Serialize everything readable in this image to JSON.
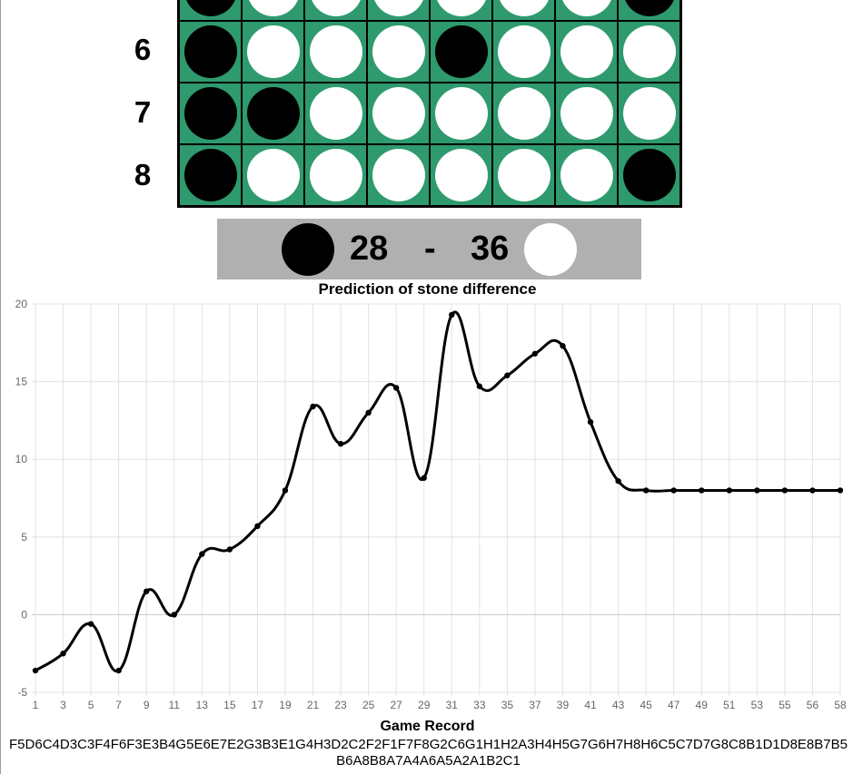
{
  "board": {
    "rows": [
      {
        "label": "",
        "cells": [
          "B",
          "W",
          "W",
          "W",
          "W",
          "W",
          "W",
          "B"
        ]
      },
      {
        "label": "6",
        "cells": [
          "B",
          "W",
          "W",
          "W",
          "B",
          "W",
          "W",
          "W"
        ]
      },
      {
        "label": "7",
        "cells": [
          "B",
          "B",
          "W",
          "W",
          "W",
          "W",
          "W",
          "W"
        ]
      },
      {
        "label": "8",
        "cells": [
          "B",
          "W",
          "W",
          "W",
          "W",
          "W",
          "W",
          "B"
        ]
      }
    ],
    "colors": {
      "board_green": "#2e9a6e",
      "black": "#000000",
      "white": "#ffffff"
    }
  },
  "score": {
    "black": "28",
    "separator": "-",
    "white": "36",
    "bar_color": "#b0b0b0"
  },
  "chart_data": {
    "type": "line",
    "title": "Prediction of stone difference",
    "xlabel": "Game Record",
    "ylabel": "",
    "ylim": [
      -5,
      20
    ],
    "yticks": [
      "-5",
      "0",
      "5",
      "10",
      "15",
      "20"
    ],
    "xtick_labels": [
      "1",
      "3",
      "5",
      "7",
      "9",
      "11",
      "13",
      "15",
      "17",
      "19",
      "21",
      "23",
      "25",
      "27",
      "29",
      "31",
      "33",
      "35",
      "37",
      "39",
      "41",
      "43",
      "45",
      "47",
      "49",
      "51",
      "53",
      "55",
      "56",
      "58"
    ],
    "grid": true,
    "series": [
      {
        "values": [
          -3.6,
          -2.5,
          -0.6,
          -3.6,
          1.5,
          0.0,
          3.9,
          4.2,
          5.7,
          8.0,
          13.4,
          11.0,
          13.0,
          14.6,
          8.8,
          19.3,
          14.7,
          15.4,
          16.8,
          17.3,
          12.4,
          8.6,
          8.0,
          8.0,
          8.0,
          8.0,
          8.0,
          8.0,
          8.0,
          8.0
        ],
        "color": "#000000"
      }
    ]
  },
  "record": {
    "label": "Game Record",
    "moves": "F5D6C4D3C3F4F6F3E3B4G5E6E7E2G3B3E1G4H3D2C2F2F1F7F8G2C6G1H1H2A3H4H5G7G6H7H8H6C5C7D7G8C8B1D1D8E8B7B5B6A8B8A7A4A6A5A2A1B2C1"
  }
}
